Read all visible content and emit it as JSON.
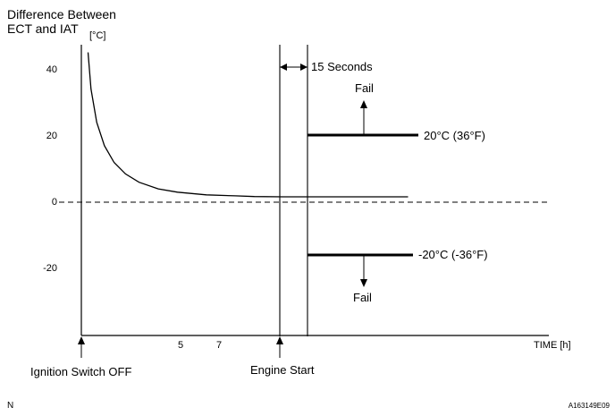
{
  "chart_data": {
    "type": "line",
    "title": "Difference Between ECT and IAT",
    "title_lines": [
      "Difference Between",
      "ECT and IAT"
    ],
    "ylabel": "[°C]",
    "xlabel": "TIME [h]",
    "yticks": [
      40,
      20,
      0,
      -20
    ],
    "xticks": [
      5,
      7
    ],
    "ylim": [
      -40,
      45
    ],
    "grid": false,
    "legend": "none",
    "zero_line": "dashed",
    "series": [
      {
        "x": [
          0.35,
          0.5,
          0.8,
          1.2,
          1.7,
          2.3,
          3.0,
          4.0,
          5.0,
          6.5,
          8.0,
          9.0,
          10.5,
          12.0,
          13.0,
          14.0,
          15.0,
          16.0,
          17.0
        ],
        "values": [
          45,
          34,
          24,
          17,
          12,
          8.5,
          6,
          4,
          3,
          2.2,
          1.9,
          1.7,
          1.6,
          1.6,
          1.6,
          1.6,
          1.6,
          1.6,
          1.6
        ]
      }
    ],
    "annotations": {
      "ignition_off": "Ignition Switch OFF",
      "engine_start": "Engine Start",
      "interval": "15 Seconds",
      "fail_upper": "Fail",
      "fail_lower": "Fail",
      "upper_threshold": "20°C (36°F)",
      "lower_threshold": "-20°C (-36°F)"
    }
  },
  "footer": {
    "left_mark": "N",
    "figure_id": "A163149E09"
  }
}
